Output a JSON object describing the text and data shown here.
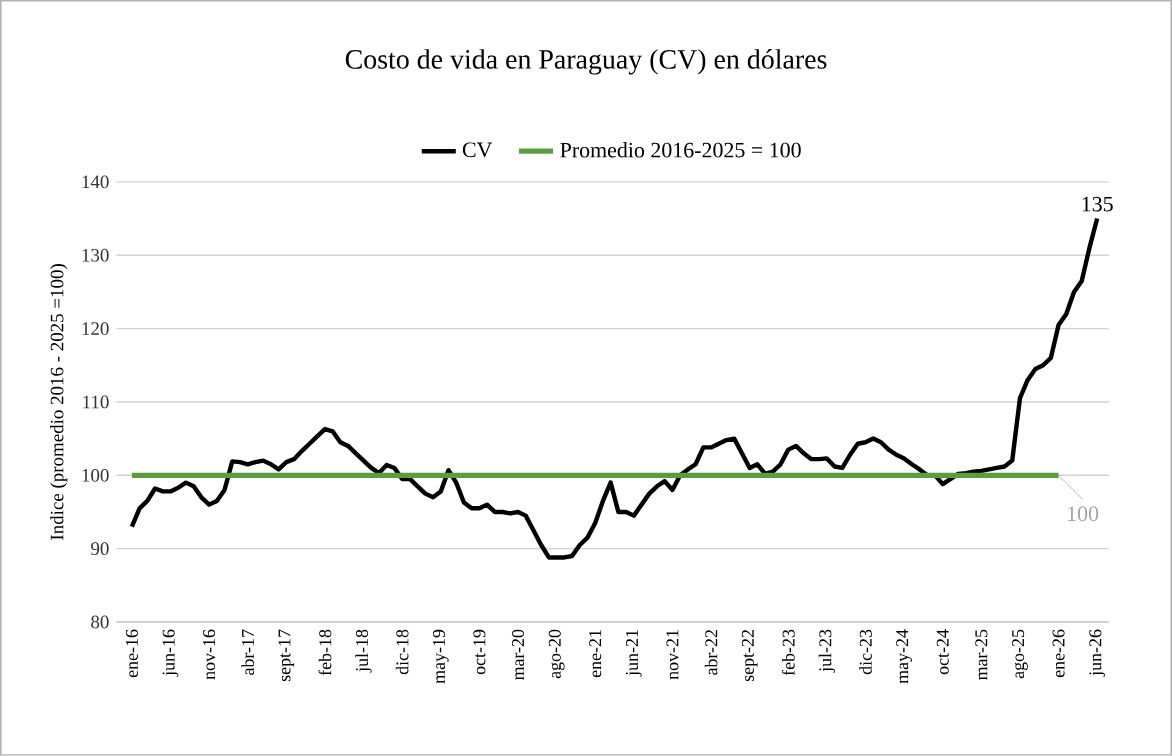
{
  "chart_data": {
    "type": "line",
    "title": "Costo de vida en Paraguay (CV) en dólares",
    "ylabel": "Indice (promedio 2016 - 2025 =100)",
    "categories": [
      "ene-16",
      null,
      null,
      null,
      null,
      "jun-16",
      null,
      null,
      null,
      null,
      "nov-16",
      null,
      null,
      null,
      null,
      "abr-17",
      null,
      null,
      null,
      null,
      "sept-17",
      null,
      null,
      null,
      null,
      "feb-18",
      null,
      null,
      null,
      null,
      "jul-18",
      null,
      null,
      null,
      null,
      "dic-18",
      null,
      null,
      null,
      null,
      "may-19",
      null,
      null,
      null,
      null,
      "oct-19",
      null,
      null,
      null,
      null,
      "mar-20",
      null,
      null,
      null,
      null,
      "ago-20",
      null,
      null,
      null,
      null,
      "ene-21",
      null,
      null,
      null,
      null,
      "jun-21",
      null,
      null,
      null,
      null,
      "nov-21",
      null,
      null,
      null,
      null,
      "abr-22",
      null,
      null,
      null,
      null,
      "sept-22",
      null,
      null,
      null,
      null,
      "feb-23",
      null,
      null,
      null,
      null,
      "jul-23",
      null,
      null,
      null,
      null,
      "dic-23",
      null,
      null,
      null,
      null,
      "may-24",
      null,
      null,
      null,
      null,
      "oct-24",
      null,
      null,
      null,
      null,
      "mar-25",
      null,
      null,
      null,
      null,
      "ago-25",
      null,
      null,
      null,
      null,
      "ene-26",
      null,
      null,
      null,
      null,
      "jun-26"
    ],
    "series": [
      {
        "name": "CV",
        "color": "#000000",
        "values": [
          93,
          95.5,
          96.5,
          98.2,
          97.8,
          97.8,
          98.3,
          99,
          98.5,
          97,
          96,
          96.5,
          98,
          101.9,
          101.8,
          101.5,
          101.8,
          102,
          101.5,
          100.8,
          101.8,
          102.2,
          103.3,
          104.3,
          105.3,
          106.3,
          106,
          104.5,
          104,
          103,
          102,
          101,
          100.3,
          101.4,
          101,
          99.5,
          99.5,
          98.5,
          97.5,
          97,
          97.8,
          100.7,
          99,
          96.3,
          95.5,
          95.5,
          96,
          95,
          95,
          94.8,
          95,
          94.5,
          92.5,
          90.5,
          88.8,
          88.8,
          88.8,
          89,
          90.5,
          91.5,
          93.5,
          96.5,
          99,
          95,
          95,
          94.5,
          96,
          97.5,
          98.5,
          99.2,
          98,
          100,
          100.8,
          101.5,
          103.8,
          103.8,
          104.3,
          104.8,
          105,
          103,
          101,
          101.5,
          100.2,
          100.5,
          101.5,
          103.5,
          104,
          103,
          102.2,
          102.2,
          102.3,
          101.2,
          101,
          102.8,
          104.3,
          104.5,
          105,
          104.5,
          103.5,
          102.8,
          102.3,
          101.5,
          100.8,
          100,
          100,
          98.8,
          99.5,
          100.2,
          100.3,
          100.5,
          100.6,
          100.8,
          101,
          101.2,
          102,
          110.5,
          113,
          114.5,
          115,
          116,
          120.5,
          122,
          125,
          126.5,
          131,
          135
        ]
      },
      {
        "name": "Promedio 2016-2025 = 100",
        "color": "#5b9c3c",
        "values": [
          100,
          100,
          100,
          100,
          100,
          100,
          100,
          100,
          100,
          100,
          100,
          100,
          100,
          100,
          100,
          100,
          100,
          100,
          100,
          100,
          100,
          100,
          100,
          100,
          100,
          100,
          100,
          100,
          100,
          100,
          100,
          100,
          100,
          100,
          100,
          100,
          100,
          100,
          100,
          100,
          100,
          100,
          100,
          100,
          100,
          100,
          100,
          100,
          100,
          100,
          100,
          100,
          100,
          100,
          100,
          100,
          100,
          100,
          100,
          100,
          100,
          100,
          100,
          100,
          100,
          100,
          100,
          100,
          100,
          100,
          100,
          100,
          100,
          100,
          100,
          100,
          100,
          100,
          100,
          100,
          100,
          100,
          100,
          100,
          100,
          100,
          100,
          100,
          100,
          100,
          100,
          100,
          100,
          100,
          100,
          100,
          100,
          100,
          100,
          100,
          100,
          100,
          100,
          100,
          100,
          100,
          100,
          100,
          100,
          100,
          100,
          100,
          100,
          100,
          100,
          100,
          100,
          100,
          100,
          100,
          100,
          null,
          null,
          null,
          null,
          null
        ]
      }
    ],
    "ylim": [
      80,
      140
    ],
    "yticks": [
      80,
      90,
      100,
      110,
      120,
      130,
      140
    ],
    "grid": "y",
    "legend": "top",
    "marker": "none",
    "line_style": "solid",
    "annotations": [
      {
        "text": "135",
        "x": "jun-26",
        "y": 135
      },
      {
        "text": "100",
        "x": "ene-26",
        "y": 100
      }
    ]
  }
}
